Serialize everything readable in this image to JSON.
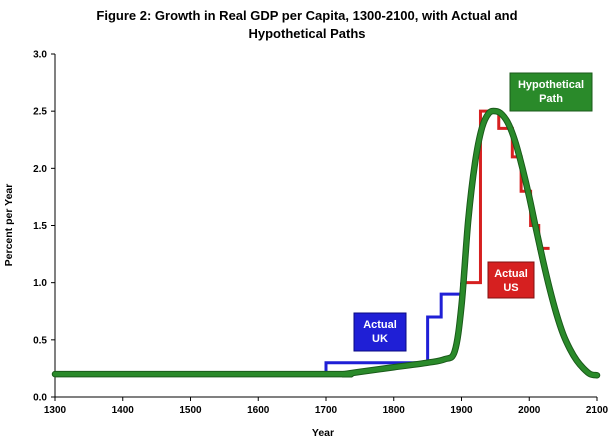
{
  "chart_data": {
    "type": "line",
    "title_line1": "Figure 2: Growth in Real GDP per Capita, 1300-2100, with Actual and",
    "title_line2": "Hypothetical Paths",
    "xlabel": "Year",
    "ylabel": "Percent per Year",
    "xlim": [
      1300,
      2100
    ],
    "ylim": [
      0,
      3.0
    ],
    "x_ticks": [
      "1300",
      "1400",
      "1500",
      "1600",
      "1700",
      "1800",
      "1900",
      "2000",
      "2100"
    ],
    "y_ticks": [
      "0.0",
      "0.5",
      "1.0",
      "1.5",
      "2.0",
      "2.5",
      "3.0"
    ],
    "grid": false,
    "colors": {
      "actual_uk": "#1f1fd6",
      "actual_us": "#d62020",
      "hypothetical": "#2a8a2a",
      "hypothetical_edge": "#1a5a1a"
    },
    "series": [
      {
        "name": "Actual UK",
        "style": "step",
        "x": [
          1300,
          1700,
          1700,
          1850,
          1850,
          1870,
          1870,
          1900,
          1900
        ],
        "y": [
          0.2,
          0.2,
          0.3,
          0.3,
          0.7,
          0.7,
          0.9,
          0.9,
          1.0
        ]
      },
      {
        "name": "Actual US",
        "style": "step",
        "x": [
          1900,
          1928,
          1928,
          1955,
          1955,
          1975,
          1975,
          1988,
          1988,
          2002,
          2002,
          2014,
          2014,
          2030
        ],
        "y": [
          1.0,
          1.0,
          2.5,
          2.5,
          2.35,
          2.35,
          2.1,
          2.1,
          1.8,
          1.8,
          1.5,
          1.5,
          1.3,
          1.3
        ]
      },
      {
        "name": "Hypothetical Path",
        "style": "smooth",
        "x": [
          1300,
          1700,
          1725,
          1750,
          1800,
          1850,
          1875,
          1890,
          1900,
          1910,
          1920,
          1930,
          1940,
          1950,
          1960,
          1970,
          1980,
          1990,
          2000,
          2010,
          2020,
          2030,
          2040,
          2050,
          2060,
          2070,
          2080,
          2090,
          2100
        ],
        "y": [
          0.2,
          0.2,
          0.2,
          0.22,
          0.26,
          0.3,
          0.33,
          0.4,
          0.8,
          1.55,
          2.05,
          2.35,
          2.48,
          2.5,
          2.47,
          2.38,
          2.22,
          2.0,
          1.75,
          1.47,
          1.2,
          0.95,
          0.73,
          0.55,
          0.42,
          0.32,
          0.25,
          0.2,
          0.19
        ]
      }
    ],
    "annotations": {
      "uk": [
        "Actual",
        "UK"
      ],
      "us": [
        "Actual",
        "US"
      ],
      "hyp": [
        "Hypothetical",
        "Path"
      ]
    }
  }
}
